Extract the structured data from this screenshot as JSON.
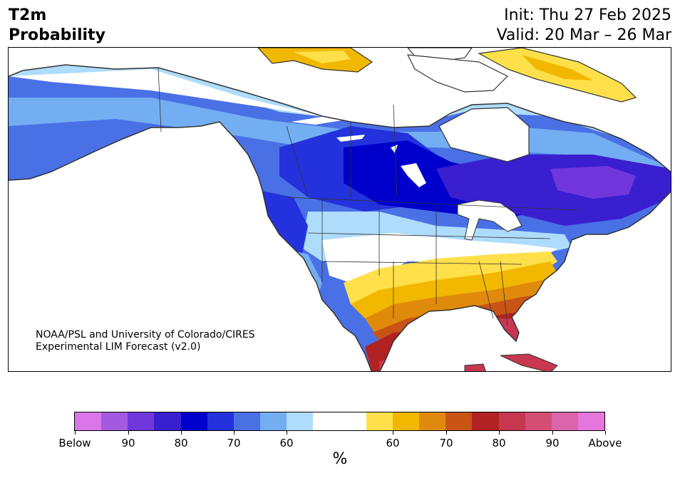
{
  "header": {
    "variable": "T2m",
    "field": "Probability",
    "init": "Init: Thu 27 Feb 2025",
    "valid": "Valid: 20 Mar – 26 Mar"
  },
  "map": {
    "region": "North America",
    "credit_line1": "NOAA/PSL and University of Colorado/CIRES",
    "credit_line2": "Experimental LIM Forecast (v2.0)"
  },
  "colorbar": {
    "unit": "%",
    "colors": [
      "#d977e8",
      "#a35ae0",
      "#7036dc",
      "#3a1fd0",
      "#0000cc",
      "#2332dc",
      "#4a70e6",
      "#74aef2",
      "#aedcfc",
      "#ffffff",
      "#ffffff",
      "#ffe04a",
      "#f2b800",
      "#e08a0c",
      "#c85416",
      "#b12222",
      "#c73850",
      "#d34e74",
      "#dc64aa",
      "#e676dc"
    ],
    "tick_labels": [
      "Below",
      "90",
      "80",
      "70",
      "60",
      "60",
      "70",
      "80",
      "90",
      "Above"
    ]
  }
}
